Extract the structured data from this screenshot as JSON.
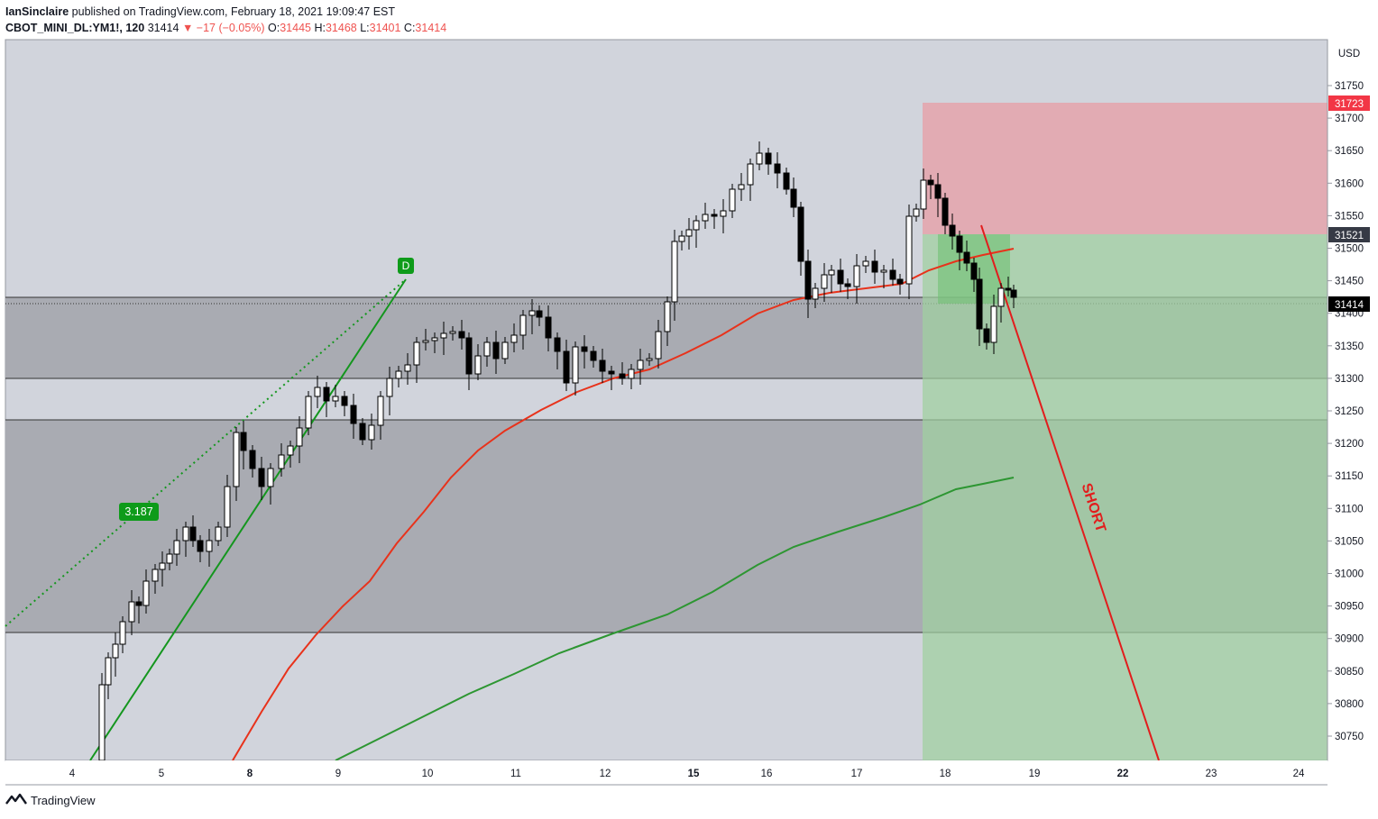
{
  "header": {
    "author": "IanSinclaire",
    "published_text": "published on TradingView.com, February 18, 2021 19:09:47 EST"
  },
  "ohlc": {
    "symbol": "CBOT_MINI_DL:YM1!, 120",
    "last": "31414",
    "change": "−17 (−0.05%)",
    "o_label": "O:",
    "o_val": "31445",
    "h_label": "H:",
    "h_val": "31468",
    "l_label": "L:",
    "l_val": "31401",
    "c_label": "C:",
    "c_val": "31414"
  },
  "axis": {
    "currency": "USD",
    "price_ticks": [
      "31750",
      "31700",
      "31650",
      "31600",
      "31550",
      "31500",
      "31450",
      "31400",
      "31350",
      "31300",
      "31250",
      "31200",
      "31150",
      "31100",
      "31050",
      "31000",
      "30950",
      "30900",
      "30850",
      "30800",
      "30750"
    ],
    "time_ticks": [
      "4",
      "5",
      "8",
      "9",
      "10",
      "11",
      "12",
      "15",
      "16",
      "17",
      "18",
      "19",
      "22",
      "23",
      "24"
    ],
    "labels": {
      "stop": "31723",
      "entry": "31521",
      "current": "31414"
    }
  },
  "annotations": {
    "d_label": "D",
    "fib_value": "3.187",
    "short_label": "SHORT"
  },
  "colors": {
    "background": "#d1d4dc",
    "zone_grey": "#a9abb2",
    "stop_zone": "#e0a6ae",
    "target_zone": "#a4cba6",
    "candle_up": "#ffffff",
    "candle_down": "#000000",
    "ema_red": "#e8321b",
    "ma_green": "#2d9632",
    "trend_green": "#14961e",
    "short_red": "#e21d1d"
  },
  "footer": {
    "brand": "TradingView"
  }
}
